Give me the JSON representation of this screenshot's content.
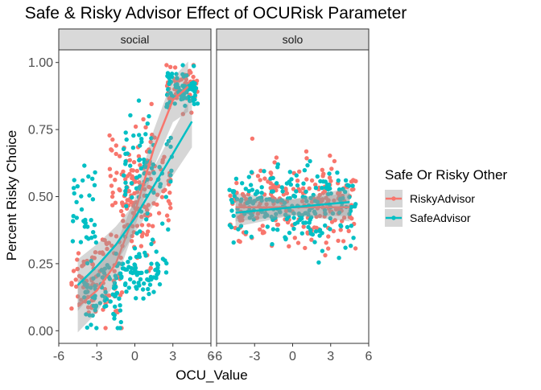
{
  "chart_data": {
    "type": "scatter",
    "title": "Safe & Risky Advisor Effect of OCURisk Parameter",
    "xlabel": "OCU_Value",
    "ylabel": "Percent Risky Choice",
    "xlim": [
      -6,
      6
    ],
    "ylim": [
      0,
      1
    ],
    "x_ticks": [
      "-6",
      "-3",
      "0",
      "3",
      "6"
    ],
    "y_ticks": [
      "0.00",
      "0.25",
      "0.50",
      "0.75",
      "1.00"
    ],
    "panels": [
      "social",
      "solo"
    ],
    "legend": {
      "title": "Safe Or Risky Other",
      "position": "right",
      "entries": [
        "RiskyAdvisor",
        "SafeAdvisor"
      ]
    },
    "grid": false,
    "series": [
      {
        "name": "RiskyAdvisor",
        "color": "#F8766D",
        "smooth_fit": {
          "social": {
            "x": [
              -4.5,
              -3,
              -1.5,
              0,
              1.5,
              3,
              4.2
            ],
            "y": [
              0.09,
              0.15,
              0.25,
              0.44,
              0.68,
              0.86,
              0.91
            ]
          },
          "solo": {
            "x": [
              -4.5,
              0,
              4.5
            ],
            "y": [
              0.46,
              0.46,
              0.46
            ]
          }
        },
        "clusters": {
          "social": [
            {
              "x_range": [
                -5,
                -3
              ],
              "y_center": 0.2,
              "y_spread": 0.12,
              "count": 45
            },
            {
              "x_range": [
                -3,
                -1
              ],
              "y_center": 0.2,
              "y_spread": 0.14,
              "count": 45
            },
            {
              "x_range": [
                -2,
                0
              ],
              "y_center": 0.55,
              "y_spread": 0.14,
              "count": 40
            },
            {
              "x_range": [
                -1,
                1.5
              ],
              "y_center": 0.5,
              "y_spread": 0.2,
              "count": 75
            },
            {
              "x_range": [
                0,
                3
              ],
              "y_center": 0.55,
              "y_spread": 0.15,
              "count": 45
            },
            {
              "x_range": [
                2.5,
                5
              ],
              "y_center": 0.9,
              "y_spread": 0.06,
              "count": 65
            }
          ],
          "solo": [
            {
              "x_range": [
                -5,
                5
              ],
              "y_center": 0.47,
              "y_spread": 0.13,
              "count": 220
            }
          ]
        }
      },
      {
        "name": "SafeAdvisor",
        "color": "#00BFC4",
        "smooth_fit": {
          "social": {
            "x": [
              -4.5,
              -3,
              -1.5,
              0,
              1.5,
              3,
              4.5
            ],
            "y": [
              0.17,
              0.24,
              0.32,
              0.42,
              0.54,
              0.66,
              0.78
            ]
          },
          "solo": {
            "x": [
              -4.5,
              0,
              4.5
            ],
            "y": [
              0.44,
              0.46,
              0.48
            ]
          }
        },
        "clusters": {
          "social": [
            {
              "x_range": [
                -5,
                -3
              ],
              "y_center": 0.45,
              "y_spread": 0.16,
              "count": 35
            },
            {
              "x_range": [
                -4,
                -1
              ],
              "y_center": 0.12,
              "y_spread": 0.1,
              "count": 70
            },
            {
              "x_range": [
                -1.5,
                2.5
              ],
              "y_center": 0.22,
              "y_spread": 0.09,
              "count": 80
            },
            {
              "x_range": [
                -1,
                1
              ],
              "y_center": 0.55,
              "y_spread": 0.2,
              "count": 45
            },
            {
              "x_range": [
                0,
                3
              ],
              "y_center": 0.6,
              "y_spread": 0.14,
              "count": 35
            },
            {
              "x_range": [
                2.5,
                5
              ],
              "y_center": 0.9,
              "y_spread": 0.06,
              "count": 75
            }
          ],
          "solo": [
            {
              "x_range": [
                -5,
                5
              ],
              "y_center": 0.46,
              "y_spread": 0.12,
              "count": 220
            }
          ]
        }
      }
    ]
  }
}
